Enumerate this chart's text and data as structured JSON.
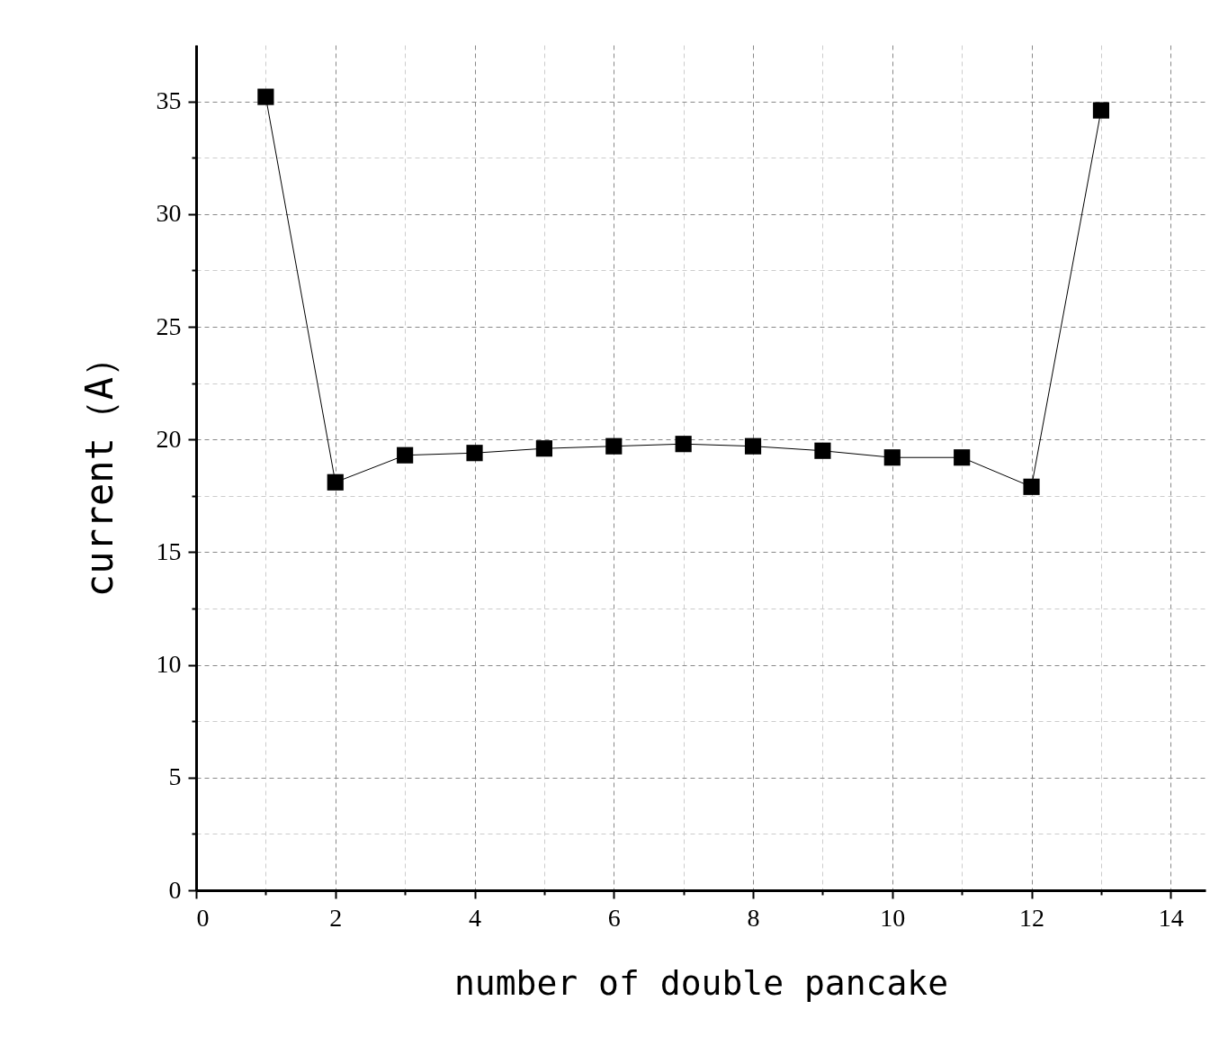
{
  "chart_data": {
    "type": "line",
    "xlabel": "number of double pancake",
    "ylabel": "current（A）",
    "x": [
      1,
      2,
      3,
      4,
      5,
      6,
      7,
      8,
      9,
      10,
      11,
      12,
      13
    ],
    "series": [
      {
        "color": "#000000",
        "values": [
          35.2,
          18.1,
          19.3,
          19.4,
          19.6,
          19.7,
          19.8,
          19.7,
          19.5,
          19.2,
          19.2,
          17.9,
          34.6
        ]
      }
    ],
    "xlim": [
      0,
      14.5
    ],
    "ylim": [
      0,
      37.5
    ],
    "xticks": [
      0,
      {
        "value": 1,
        "label": null
      },
      2,
      {
        "value": 3,
        "label": null
      },
      4,
      {
        "value": 5,
        "label": null
      },
      6,
      {
        "value": 7,
        "label": null
      },
      8,
      {
        "value": 9,
        "label": null
      },
      10,
      {
        "value": 11,
        "label": null
      },
      12,
      {
        "value": 13,
        "label": null
      },
      14
    ],
    "yticks": [
      0,
      {
        "value": 2.5,
        "label": null
      },
      5,
      {
        "value": 7.5,
        "label": null
      },
      10,
      {
        "value": 12.5,
        "label": null
      },
      15,
      {
        "value": 17.5,
        "label": null
      },
      20,
      {
        "value": 22.5,
        "label": null
      },
      25,
      {
        "value": 27.5,
        "label": null
      },
      30,
      {
        "value": 32.5,
        "label": null
      },
      35
    ],
    "grid": true,
    "marker": "square",
    "line_style": "solid"
  }
}
